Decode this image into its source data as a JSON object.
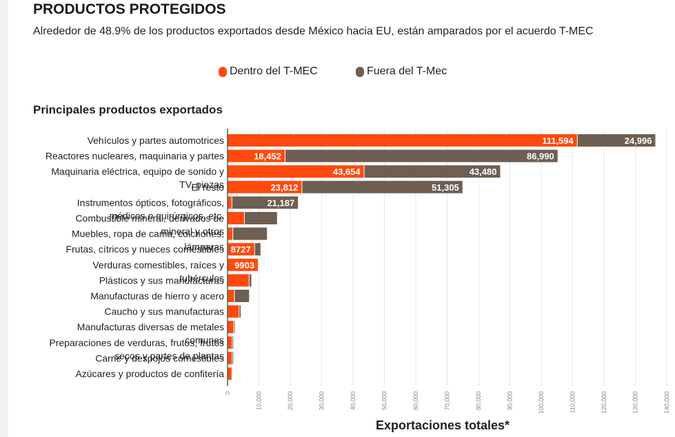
{
  "header": {
    "title": "PRODUCTOS PROTEGIDOS",
    "subtitle": "Alrededor de 48.9% de los productos exportados desde México hacia EU, están amparados por el acuerdo T-MEC"
  },
  "legend": {
    "inside": {
      "label": "Dentro del T-MEC",
      "color": "#ff4a0d"
    },
    "outside": {
      "label": "Fuera del T-Mec",
      "color": "#6e5f52"
    }
  },
  "chart_data": {
    "type": "bar",
    "orientation": "horizontal",
    "stacked": true,
    "title": "Principales productos exportados",
    "xlabel": "Exportaciones totales*",
    "ylabel": "",
    "xlim": [
      0,
      140000
    ],
    "xticks": [
      "0",
      "10,000",
      "20,000",
      "30,000",
      "40,000",
      "50,000",
      "60,000",
      "70,000",
      "80,000",
      "90,000",
      "100,000",
      "110,000",
      "120,000",
      "130,000",
      "140,000"
    ],
    "categories": [
      [
        "Vehículos y partes automotrices"
      ],
      [
        "Reactores nucleares, maquinaria y partes"
      ],
      [
        "Maquinaria eléctrica, equipo de sonido y",
        "TV, piezas"
      ],
      [
        "El resto"
      ],
      [
        "Instrumentos ópticos, fotográficos,",
        "médicos o quirúrgicos, etc."
      ],
      [
        "Combustible mineral, derivados de",
        "mineral y otros"
      ],
      [
        "Muebles, ropa de cama, colchones,",
        "lámparas"
      ],
      [
        "Frutas, cítricos y nueces comestibles"
      ],
      [
        "Verduras comestibles, raíces y",
        "tubérculos"
      ],
      [
        "Plásticos y sus manufacturas"
      ],
      [
        "Manufacturas de hierro y acero"
      ],
      [
        "Caucho y sus manufacturas"
      ],
      [
        "Manufacturas diversas de metales",
        "comunes"
      ],
      [
        "Preparaciones de verduras, frutos, frutos",
        "secos y partes de plantas"
      ],
      [
        "Carne y despojos comestibles"
      ],
      [
        "Azúcares y productos de confitería"
      ]
    ],
    "series": [
      {
        "name": "Dentro del T-MEC",
        "color": "#ff4a0d",
        "values": [
          111594,
          18452,
          43654,
          23812,
          1500,
          5500,
          1800,
          8727,
          9903,
          7000,
          2300,
          3800,
          2100,
          1600,
          1600,
          1500
        ],
        "labels": [
          "111,594",
          "18,452",
          "43,654",
          "23,812",
          "",
          "",
          "",
          "8727",
          "9903",
          "",
          "",
          "",
          "",
          "",
          "",
          ""
        ]
      },
      {
        "name": "Fuera del T-Mec",
        "color": "#6e5f52",
        "values": [
          24996,
          86990,
          43480,
          51305,
          21187,
          10500,
          11000,
          2000,
          0,
          800,
          4800,
          600,
          400,
          200,
          300,
          0
        ],
        "labels": [
          "24,996",
          "86,990",
          "43,480",
          "51,305",
          "21,187",
          "",
          "",
          "",
          "",
          "",
          "",
          "",
          "",
          "",
          "",
          ""
        ]
      }
    ]
  }
}
